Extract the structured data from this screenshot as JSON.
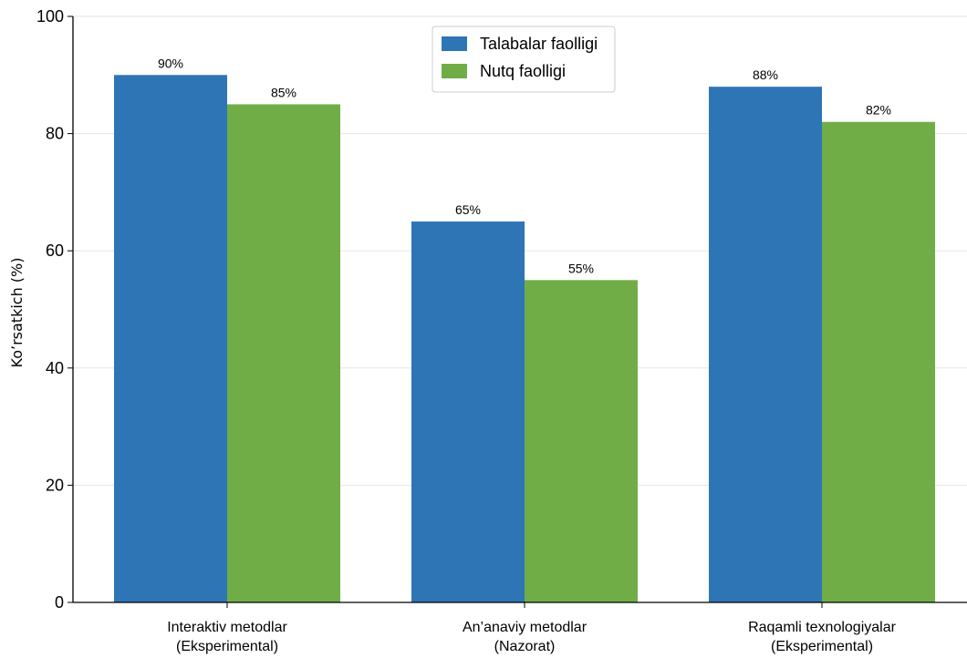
{
  "chart_data": {
    "type": "bar",
    "categories": [
      [
        "Interaktiv metodlar",
        "(Eksperimental)"
      ],
      [
        "An’anaviy metodlar",
        "(Nazorat)"
      ],
      [
        "Raqamli texnologiyalar",
        "(Eksperimental)"
      ]
    ],
    "series": [
      {
        "name": "Talabalar faolligi",
        "values": [
          90,
          65,
          88
        ],
        "labels": [
          "90%",
          "65%",
          "88%"
        ],
        "color": "#2e75b6"
      },
      {
        "name": "Nutq faolligi",
        "values": [
          85,
          55,
          82
        ],
        "labels": [
          "85%",
          "55%",
          "82%"
        ],
        "color": "#70ad47"
      }
    ],
    "ylabel": "Ko’rsatkich (%)",
    "ylim": [
      0,
      100
    ],
    "yticks": [
      0,
      20,
      40,
      60,
      80,
      100
    ],
    "grid": "horizontal",
    "legend_position": "top-center"
  }
}
